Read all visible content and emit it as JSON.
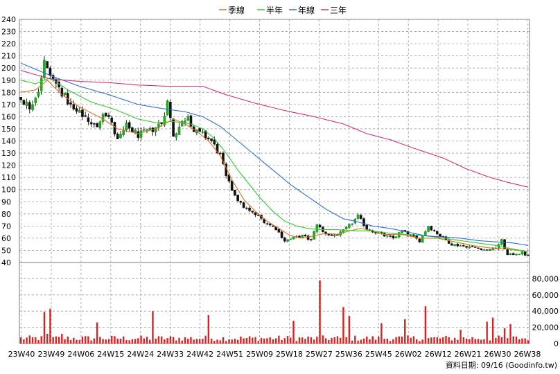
{
  "chart_data": {
    "type": "candlestick",
    "legend": [
      {
        "label": "季線",
        "color": "#e0701f"
      },
      {
        "label": "半年",
        "color": "#2ecc2e"
      },
      {
        "label": "年線",
        "color": "#2a6fd6"
      },
      {
        "label": "三年",
        "color": "#d4307a"
      }
    ],
    "x_ticks": [
      "23W40",
      "23W49",
      "24W06",
      "24W15",
      "24W24",
      "24W33",
      "24W42",
      "24W51",
      "25W09",
      "25W18",
      "25W27",
      "25W36",
      "25W45",
      "26W02",
      "26W12",
      "26W21",
      "26W30",
      "26W38"
    ],
    "price_axis": {
      "min": 40,
      "max": 240,
      "step": 10,
      "side": "left"
    },
    "volume_axis": {
      "min": 0,
      "max": 100000,
      "ticks": [
        "0",
        "20,000",
        "40,000",
        "60,000",
        "80,000"
      ],
      "side": "right"
    },
    "colors": {
      "up": "#22aa22",
      "down": "#111111",
      "volume": "#e0201f",
      "grid": "#9a9a9a"
    },
    "anchors": {
      "price": [
        [
          0,
          175
        ],
        [
          3,
          168
        ],
        [
          6,
          182
        ],
        [
          8,
          205
        ],
        [
          9,
          198
        ],
        [
          11,
          190
        ],
        [
          14,
          180
        ],
        [
          18,
          165
        ],
        [
          22,
          160
        ],
        [
          26,
          150
        ],
        [
          28,
          165
        ],
        [
          30,
          160
        ],
        [
          33,
          140
        ],
        [
          36,
          152
        ],
        [
          40,
          145
        ],
        [
          44,
          148
        ],
        [
          48,
          155
        ],
        [
          50,
          172
        ],
        [
          52,
          145
        ],
        [
          55,
          155
        ],
        [
          57,
          162
        ],
        [
          59,
          148
        ],
        [
          62,
          145
        ],
        [
          65,
          140
        ],
        [
          68,
          128
        ],
        [
          70,
          110
        ],
        [
          72,
          100
        ],
        [
          75,
          88
        ],
        [
          78,
          82
        ],
        [
          81,
          78
        ],
        [
          84,
          72
        ],
        [
          87,
          68
        ],
        [
          90,
          58
        ],
        [
          93,
          60
        ],
        [
          96,
          62
        ],
        [
          99,
          58
        ],
        [
          101,
          72
        ],
        [
          103,
          65
        ],
        [
          106,
          62
        ],
        [
          109,
          64
        ],
        [
          112,
          70
        ],
        [
          115,
          78
        ],
        [
          118,
          68
        ],
        [
          121,
          65
        ],
        [
          124,
          62
        ],
        [
          127,
          60
        ],
        [
          130,
          66
        ],
        [
          133,
          62
        ],
        [
          136,
          58
        ],
        [
          139,
          70
        ],
        [
          141,
          66
        ],
        [
          144,
          60
        ],
        [
          147,
          55
        ],
        [
          150,
          54
        ],
        [
          153,
          53
        ],
        [
          156,
          52
        ],
        [
          159,
          50
        ],
        [
          162,
          52
        ],
        [
          164,
          58
        ],
        [
          166,
          46
        ],
        [
          168,
          47
        ],
        [
          171,
          48
        ],
        [
          173,
          45
        ]
      ],
      "ma_quarter": [
        [
          0,
          180
        ],
        [
          5,
          182
        ],
        [
          9,
          190
        ],
        [
          14,
          178
        ],
        [
          20,
          168
        ],
        [
          28,
          158
        ],
        [
          33,
          150
        ],
        [
          40,
          146
        ],
        [
          46,
          150
        ],
        [
          52,
          158
        ],
        [
          56,
          154
        ],
        [
          60,
          148
        ],
        [
          64,
          140
        ],
        [
          68,
          128
        ],
        [
          72,
          108
        ],
        [
          76,
          92
        ],
        [
          80,
          82
        ],
        [
          84,
          74
        ],
        [
          88,
          68
        ],
        [
          92,
          62
        ],
        [
          96,
          60
        ],
        [
          100,
          62
        ],
        [
          104,
          64
        ],
        [
          108,
          63
        ],
        [
          112,
          66
        ],
        [
          116,
          68
        ],
        [
          120,
          66
        ],
        [
          124,
          63
        ],
        [
          130,
          63
        ],
        [
          136,
          60
        ],
        [
          142,
          60
        ],
        [
          148,
          57
        ],
        [
          154,
          54
        ],
        [
          160,
          52
        ],
        [
          166,
          51
        ],
        [
          173,
          49
        ]
      ],
      "ma_half": [
        [
          0,
          190
        ],
        [
          5,
          187
        ],
        [
          10,
          192
        ],
        [
          16,
          182
        ],
        [
          24,
          172
        ],
        [
          32,
          166
        ],
        [
          40,
          158
        ],
        [
          46,
          155
        ],
        [
          52,
          156
        ],
        [
          58,
          154
        ],
        [
          62,
          150
        ],
        [
          66,
          142
        ],
        [
          70,
          130
        ],
        [
          74,
          116
        ],
        [
          78,
          104
        ],
        [
          82,
          92
        ],
        [
          86,
          82
        ],
        [
          90,
          74
        ],
        [
          94,
          70
        ],
        [
          98,
          68
        ],
        [
          102,
          67
        ],
        [
          108,
          67
        ],
        [
          114,
          66
        ],
        [
          120,
          66
        ],
        [
          126,
          64
        ],
        [
          132,
          63
        ],
        [
          138,
          62
        ],
        [
          144,
          60
        ],
        [
          150,
          58
        ],
        [
          156,
          56
        ],
        [
          162,
          54
        ],
        [
          168,
          51
        ],
        [
          173,
          49
        ]
      ],
      "ma_year": [
        [
          0,
          204
        ],
        [
          6,
          198
        ],
        [
          12,
          192
        ],
        [
          20,
          185
        ],
        [
          30,
          178
        ],
        [
          40,
          170
        ],
        [
          50,
          166
        ],
        [
          56,
          164
        ],
        [
          62,
          160
        ],
        [
          68,
          152
        ],
        [
          74,
          140
        ],
        [
          80,
          128
        ],
        [
          86,
          116
        ],
        [
          92,
          104
        ],
        [
          98,
          94
        ],
        [
          104,
          84
        ],
        [
          110,
          76
        ],
        [
          114,
          74
        ],
        [
          120,
          70
        ],
        [
          126,
          68
        ],
        [
          132,
          65
        ],
        [
          138,
          62
        ],
        [
          144,
          61
        ],
        [
          150,
          60
        ],
        [
          156,
          58
        ],
        [
          162,
          57
        ],
        [
          168,
          56
        ],
        [
          173,
          54
        ]
      ],
      "ma_3y": [
        [
          0,
          198
        ],
        [
          10,
          191
        ],
        [
          20,
          189
        ],
        [
          30,
          188
        ],
        [
          40,
          186
        ],
        [
          50,
          185
        ],
        [
          62,
          185
        ],
        [
          70,
          178
        ],
        [
          80,
          171
        ],
        [
          90,
          165
        ],
        [
          100,
          160
        ],
        [
          110,
          154
        ],
        [
          118,
          146
        ],
        [
          126,
          141
        ],
        [
          134,
          134
        ],
        [
          144,
          126
        ],
        [
          152,
          117
        ],
        [
          160,
          110
        ],
        [
          166,
          106
        ],
        [
          173,
          102
        ]
      ],
      "volume_spikes": [
        [
          8,
          39000
        ],
        [
          9,
          12000
        ],
        [
          10,
          43000
        ],
        [
          14,
          12000
        ],
        [
          26,
          26000
        ],
        [
          45,
          40000
        ],
        [
          64,
          35000
        ],
        [
          93,
          28000
        ],
        [
          102,
          78000
        ],
        [
          110,
          45000
        ],
        [
          112,
          34000
        ],
        [
          123,
          25000
        ],
        [
          131,
          30000
        ],
        [
          138,
          46000
        ],
        [
          150,
          17000
        ],
        [
          159,
          27000
        ],
        [
          161,
          32000
        ],
        [
          165,
          19000
        ],
        [
          167,
          24000
        ]
      ]
    }
  }
}
